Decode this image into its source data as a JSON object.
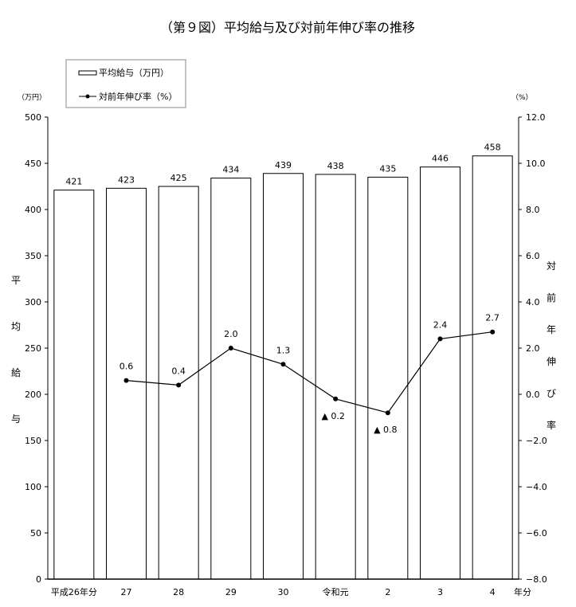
{
  "chart_data": {
    "type": "bar+line",
    "title": "（第９図）平均給与及び対前年伸び率の推移",
    "categories": [
      "平成26年分",
      "27",
      "28",
      "29",
      "30",
      "令和元",
      "2",
      "3",
      "4"
    ],
    "x_suffix": "年分",
    "series": [
      {
        "name": "平均給与（万円）",
        "type": "bar",
        "axis": "left",
        "values": [
          421,
          423,
          425,
          434,
          439,
          438,
          435,
          446,
          458
        ],
        "labels": [
          "421",
          "423",
          "425",
          "434",
          "439",
          "438",
          "435",
          "446",
          "458"
        ]
      },
      {
        "name": "対前年伸び率（%）",
        "type": "line",
        "axis": "right",
        "values": [
          null,
          0.6,
          0.4,
          2.0,
          1.3,
          -0.2,
          -0.8,
          2.4,
          2.7
        ],
        "labels": [
          "",
          "0.6",
          "0.4",
          "2.0",
          "1.3",
          "▲ 0.2",
          "▲ 0.8",
          "2.4",
          "2.7"
        ]
      }
    ],
    "left_axis": {
      "unit": "（万円）",
      "label_chars": [
        "平",
        "均",
        "給",
        "与"
      ],
      "ylim": [
        0,
        500
      ],
      "ticks": [
        "0",
        "50",
        "100",
        "150",
        "200",
        "250",
        "300",
        "350",
        "400",
        "450",
        "500"
      ]
    },
    "right_axis": {
      "unit": "（%）",
      "label_chars": [
        "対",
        "前",
        "年",
        "伸",
        "び",
        "率"
      ],
      "ylim": [
        -8,
        12
      ],
      "ticks": [
        "−8.0",
        "−6.0",
        "−4.0",
        "−2.0",
        "0.0",
        "2.0",
        "4.0",
        "6.0",
        "8.0",
        "10.0",
        "12.0"
      ]
    },
    "legend": {
      "placement": "top-left",
      "entries": [
        "平均給与（万円）",
        "対前年伸び率（%）"
      ]
    },
    "grid": false
  }
}
